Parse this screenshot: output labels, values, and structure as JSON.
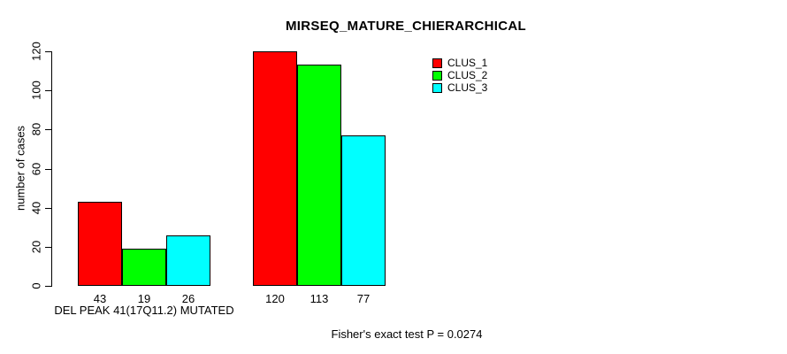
{
  "chart_data": {
    "type": "bar",
    "title": "MIRSEQ_MATURE_CHIERARCHICAL",
    "ylabel": "number of cases",
    "xlabel": "",
    "ylim": [
      0,
      120
    ],
    "yticks": [
      0,
      20,
      40,
      60,
      80,
      100,
      120
    ],
    "grid": false,
    "legend_position": "top-right",
    "bar_value_labels_shown": true,
    "categories": [
      "DEL PEAK 41(17Q11.2) MUTATED",
      ""
    ],
    "series": [
      {
        "name": "CLUS_1",
        "color": "#ff0000",
        "values": [
          43,
          120
        ]
      },
      {
        "name": "CLUS_2",
        "color": "#00ff00",
        "values": [
          19,
          113
        ]
      },
      {
        "name": "CLUS_3",
        "color": "#00ffff",
        "values": [
          26,
          77
        ]
      }
    ],
    "annotation": "Fisher's exact test P = 0.0274",
    "colors": {
      "background": "#ffffff",
      "axis": "#000000",
      "text": "#000000"
    }
  }
}
